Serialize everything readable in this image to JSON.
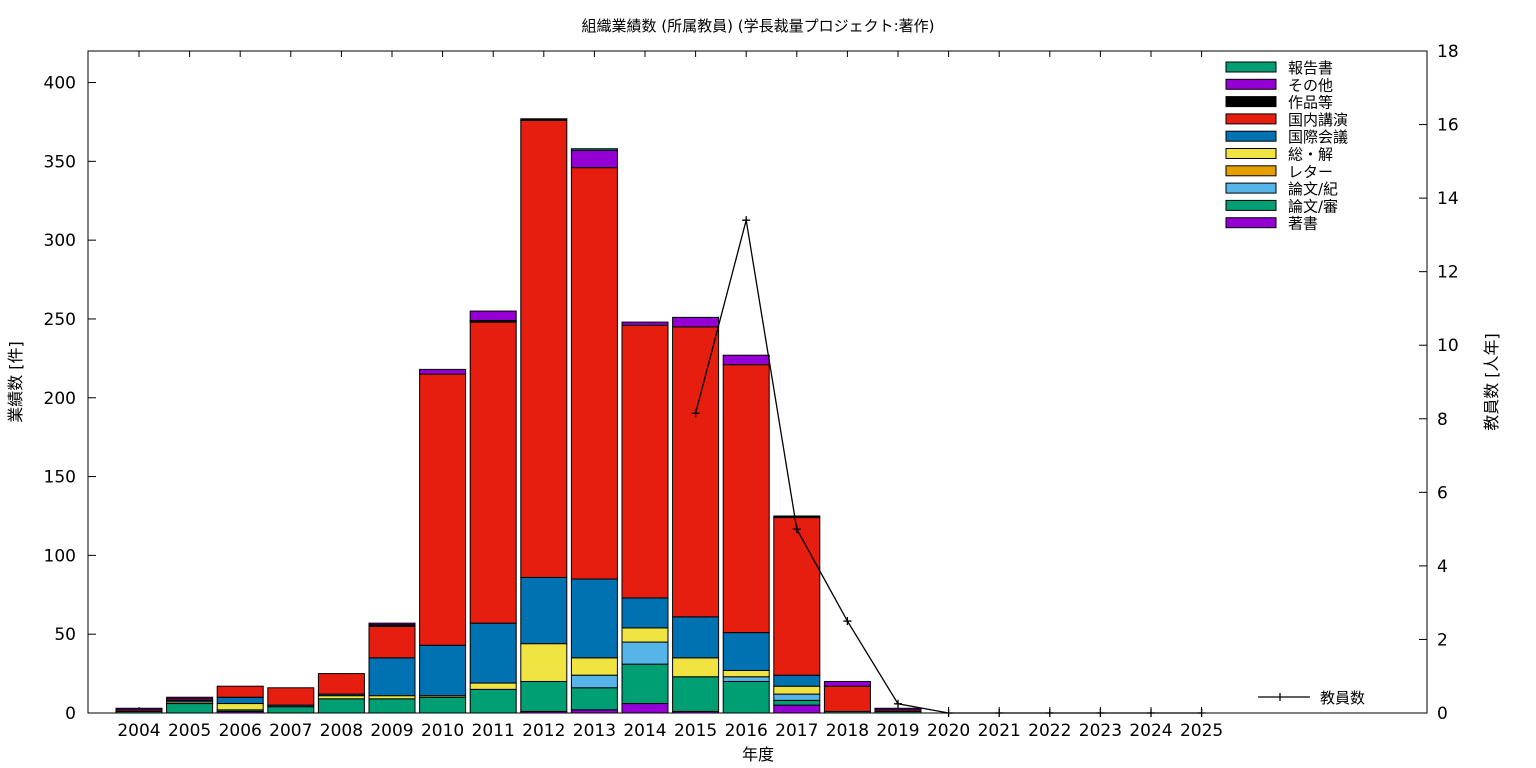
{
  "chart_data": {
    "type": "bar",
    "title": "組織業績数 (所属教員) (学長裁量プロジェクト:著作)",
    "xlabel": "年度",
    "ylabel": "業績数 [件]",
    "y2label": "教員数 [人年]",
    "ylim": [
      0,
      420
    ],
    "y2lim": [
      0,
      18
    ],
    "yticks": [
      0,
      50,
      100,
      150,
      200,
      250,
      300,
      350,
      400
    ],
    "y2ticks": [
      0,
      2,
      4,
      6,
      8,
      10,
      12,
      14,
      16,
      18
    ],
    "stacked": true,
    "grid": false,
    "legend_position": "top-right",
    "categories": [
      "2004",
      "2005",
      "2006",
      "2007",
      "2008",
      "2009",
      "2010",
      "2011",
      "2012",
      "2013",
      "2014",
      "2015",
      "2016",
      "2017",
      "2018",
      "2019",
      "2020",
      "2021",
      "2022",
      "2023",
      "2024",
      "2025"
    ],
    "series": [
      {
        "name": "著書",
        "color": "#9400d3",
        "values": [
          0,
          0,
          1,
          0,
          0,
          0,
          0,
          0,
          1,
          2,
          6,
          1,
          0,
          5,
          0,
          0,
          0,
          0,
          0,
          0,
          0,
          0
        ]
      },
      {
        "name": "論文/審",
        "color": "#009e73",
        "values": [
          1,
          6,
          1,
          4,
          9,
          9,
          10,
          15,
          19,
          14,
          25,
          22,
          20,
          3,
          1,
          1,
          0,
          0,
          0,
          0,
          0,
          0
        ]
      },
      {
        "name": "論文/紀",
        "color": "#56b4e9",
        "values": [
          0,
          0,
          0,
          0,
          0,
          0,
          0,
          0,
          0,
          8,
          14,
          0,
          3,
          4,
          0,
          0,
          0,
          0,
          0,
          0,
          0,
          0
        ]
      },
      {
        "name": "レター",
        "color": "#e69f00",
        "values": [
          0,
          0,
          0,
          0,
          0,
          0,
          0,
          0,
          0,
          0,
          0,
          0,
          0,
          0,
          0,
          0,
          0,
          0,
          0,
          0,
          0,
          0
        ]
      },
      {
        "name": "総・解",
        "color": "#f0e442",
        "values": [
          0,
          1,
          4,
          0,
          2,
          2,
          1,
          4,
          24,
          11,
          9,
          12,
          4,
          5,
          0,
          0,
          0,
          0,
          0,
          0,
          0,
          0
        ]
      },
      {
        "name": "国際会議",
        "color": "#0072b2",
        "values": [
          0,
          1,
          4,
          1,
          1,
          24,
          32,
          38,
          42,
          50,
          19,
          26,
          24,
          7,
          0,
          0,
          0,
          0,
          0,
          0,
          0,
          0
        ]
      },
      {
        "name": "国内講演",
        "color": "#e51e10",
        "values": [
          1,
          1,
          7,
          11,
          13,
          20,
          172,
          191,
          290,
          261,
          173,
          184,
          170,
          100,
          16,
          1,
          0,
          0,
          0,
          0,
          0,
          0
        ]
      },
      {
        "name": "作品等",
        "color": "#000000",
        "values": [
          0,
          0,
          0,
          0,
          0,
          1,
          0,
          1,
          1,
          0,
          0,
          0,
          0,
          1,
          0,
          0,
          0,
          0,
          0,
          0,
          0,
          0
        ]
      },
      {
        "name": "その他",
        "color": "#9400d3",
        "values": [
          1,
          1,
          0,
          0,
          0,
          1,
          3,
          6,
          0,
          11,
          2,
          6,
          6,
          0,
          3,
          1,
          0,
          0,
          0,
          0,
          0,
          0
        ]
      },
      {
        "name": "報告書",
        "color": "#009e73",
        "values": [
          0,
          0,
          0,
          0,
          0,
          0,
          0,
          0,
          0,
          1,
          0,
          0,
          0,
          0,
          0,
          0,
          0,
          0,
          0,
          0,
          0,
          0
        ]
      }
    ],
    "line_series": {
      "name": "教員数",
      "color": "#000000",
      "axis": "y2",
      "categories": [
        "2015",
        "2016",
        "2017",
        "2018",
        "2019",
        "2020",
        "2021",
        "2022",
        "2023",
        "2024",
        "2025"
      ],
      "values": [
        8.15,
        13.4,
        5.0,
        2.5,
        0.25,
        0,
        0,
        0,
        0,
        0,
        0
      ]
    }
  }
}
